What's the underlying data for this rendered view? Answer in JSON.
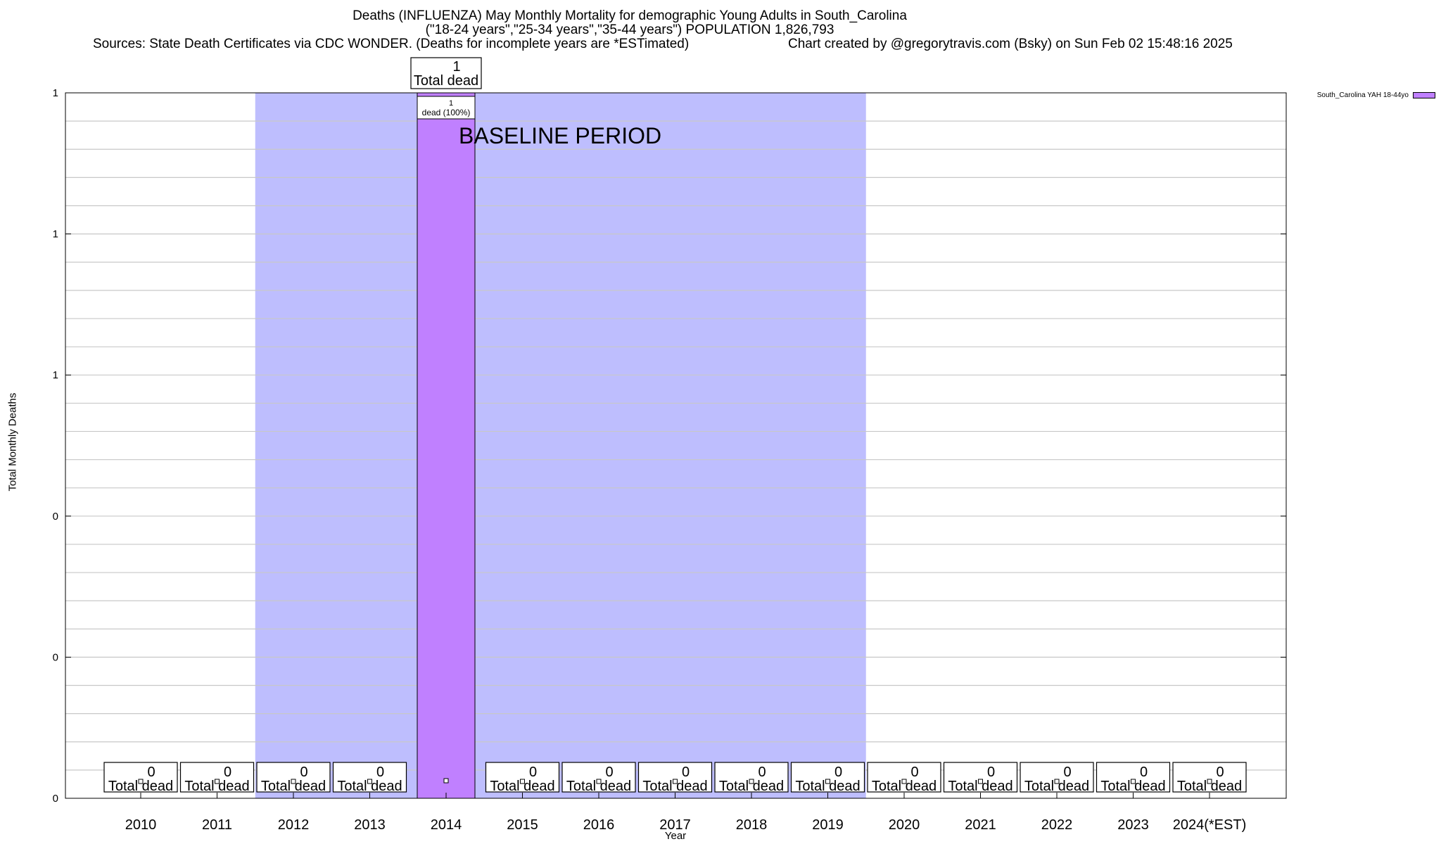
{
  "header": {
    "title_line1": "Deaths (INFLUENZA) May Monthly Mortality for demographic Young Adults in South_Carolina",
    "title_line2": "(\"18-24 years\",\"25-34 years\",\"35-44 years\") POPULATION 1,826,793",
    "sources": "Sources: State Death Certificates via CDC WONDER. (Deaths for incomplete years are *ESTimated)",
    "credit": "Chart created by @gregorytravis.com (Bsky) on Sun Feb 02 15:48:16 2025"
  },
  "colors": {
    "bar": "#c080ff",
    "baseline_fill": "#bebefe",
    "grid": "#c8c8c8"
  },
  "chart_data": {
    "type": "bar",
    "title": "Deaths (INFLUENZA) May Monthly Mortality for demographic Young Adults in South_Carolina",
    "subtitle": "(\"18-24 years\",\"25-34 years\",\"35-44 years\") POPULATION 1,826,793",
    "xlabel": "Year",
    "ylabel": "Total Monthly Deaths",
    "categories": [
      "2010",
      "2011",
      "2012",
      "2013",
      "2014",
      "2015",
      "2016",
      "2017",
      "2018",
      "2019",
      "2020",
      "2021",
      "2022",
      "2023",
      "2024(*EST)"
    ],
    "series": [
      {
        "name": "South_Carolina YAH 18-44yo",
        "values": [
          0,
          0,
          0,
          0,
          1,
          0,
          0,
          0,
          0,
          0,
          0,
          0,
          0,
          0,
          0
        ]
      }
    ],
    "ylim": [
      0,
      1
    ],
    "ytick_labels": [
      "0",
      "0",
      "0",
      "1",
      "1",
      "1"
    ],
    "grid": true,
    "legend_position": "top-right",
    "total_label_word": "Total dead",
    "bar_inner_label": {
      "index": 4,
      "value": "1",
      "text": "dead (100%)"
    },
    "baseline": {
      "label": "BASELINE PERIOD",
      "start": "2012",
      "end": "2019"
    }
  }
}
